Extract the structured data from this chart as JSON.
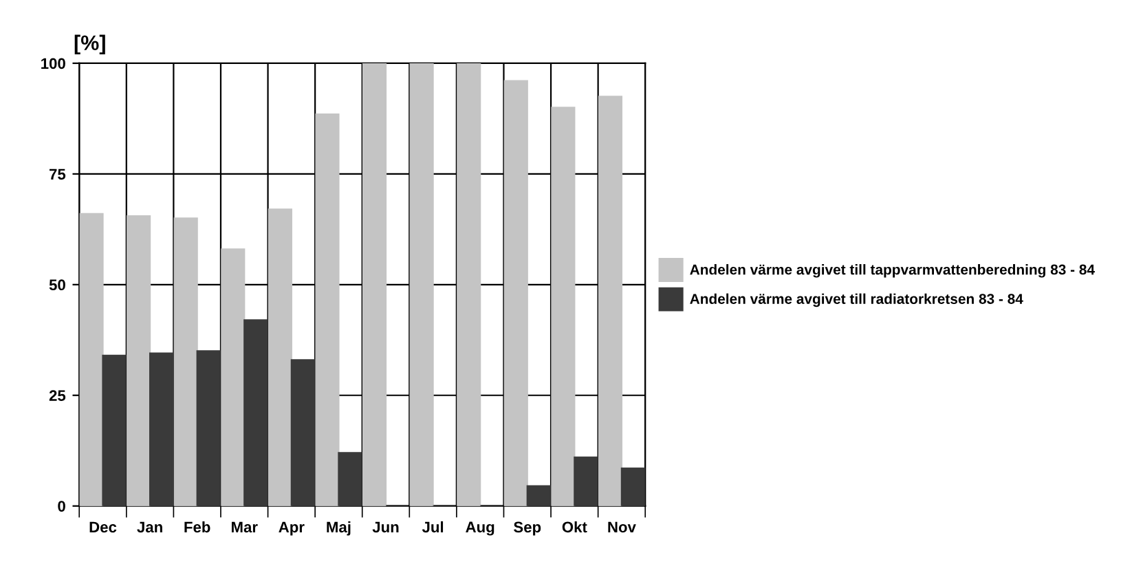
{
  "chart_data": {
    "type": "bar",
    "ylabel": "[%]",
    "categories": [
      "Dec",
      "Jan",
      "Feb",
      "Mar",
      "Apr",
      "Maj",
      "Jun",
      "Jul",
      "Aug",
      "Sep",
      "Okt",
      "Nov"
    ],
    "series": [
      {
        "name": "Andelen värme avgivet till tappvarmvattenberedning 83 - 84",
        "color": "#c4c4c4",
        "values": [
          66,
          65.5,
          65,
          58,
          67,
          88.5,
          100,
          100,
          100,
          96,
          90,
          92.5
        ]
      },
      {
        "name": "Andelen värme avgivet till radiatorkretsen 83 - 84",
        "color": "#3a3a3a",
        "values": [
          34,
          34.5,
          35,
          42,
          33,
          12,
          0,
          0,
          0,
          4.5,
          11,
          8.5
        ]
      }
    ],
    "ylim": [
      0,
      100
    ],
    "yticks": [
      0,
      25,
      50,
      75,
      100
    ],
    "grid": true,
    "legend": "right"
  }
}
